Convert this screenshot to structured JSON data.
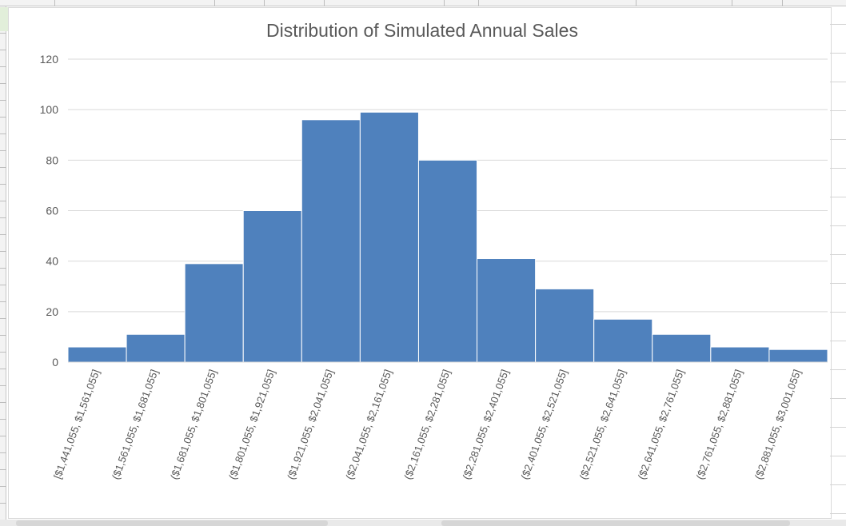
{
  "chart_data": {
    "type": "bar",
    "title": "Distribution of Simulated Annual Sales",
    "xlabel": "",
    "ylabel": "",
    "ylim": [
      0,
      120
    ],
    "yticks": [
      "0",
      "20",
      "40",
      "60",
      "80",
      "100",
      "120"
    ],
    "grid": true,
    "legend": "none",
    "bar_color": "#4f81bd",
    "categories": [
      "[$1,441,055, $1,561,055]",
      "($1,561,055, $1,681,055]",
      "($1,681,055, $1,801,055]",
      "($1,801,055, $1,921,055]",
      "($1,921,055, $2,041,055]",
      "($2,041,055, $2,161,055]",
      "($2,161,055, $2,281,055]",
      "($2,281,055, $2,401,055]",
      "($2,401,055, $2,521,055]",
      "($2,521,055, $2,641,055]",
      "($2,641,055, $2,761,055]",
      "($2,761,055, $2,881,055]",
      "($2,881,055, $3,001,055]"
    ],
    "values": [
      6,
      11,
      39,
      60,
      96,
      99,
      80,
      41,
      29,
      17,
      11,
      6,
      5
    ]
  }
}
